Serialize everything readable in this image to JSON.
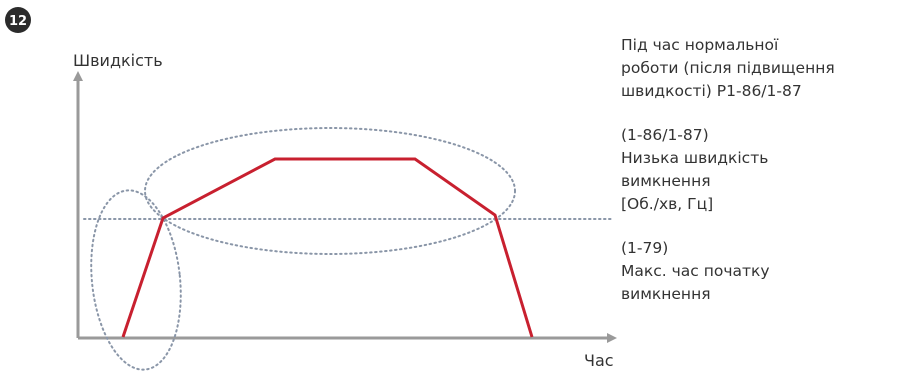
{
  "badge_number": "12",
  "y_axis_label": "Швидкість",
  "x_axis_label": "Час",
  "notes": [
    {
      "lines": [
        "Під час нормальної",
        "роботи (після підвищення",
        "швидкості) P1-86/1-87"
      ]
    },
    {
      "lines": [
        "(1-86/1-87)",
        "Низька швидкість",
        "вимкнення",
        "[Об./хв, Гц]"
      ]
    },
    {
      "lines": [
        "(1-79)",
        "Макс. час початку",
        "вимкнення"
      ]
    }
  ],
  "colors": {
    "badge": "#2b2b2b",
    "axis": "#9a9a9a",
    "curve": "#c8202f",
    "dotted": "#8a96a8",
    "text": "#333333"
  }
}
